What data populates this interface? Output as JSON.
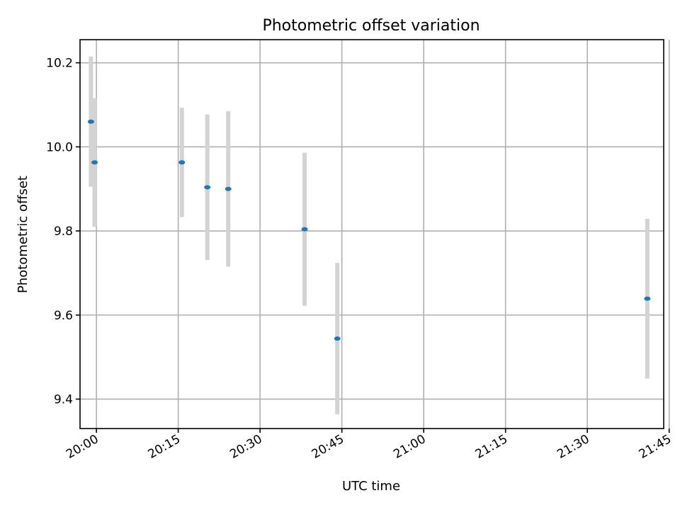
{
  "chart_data": {
    "type": "scatter",
    "title": "Photometric offset variation",
    "xlabel": "UTC time",
    "ylabel": "Photometric offset",
    "x_type": "time",
    "xlim": [
      "19:57",
      "21:44"
    ],
    "ylim": [
      9.33,
      10.255
    ],
    "grid": true,
    "x_ticks": [
      "20:00",
      "20:15",
      "20:30",
      "20:45",
      "21:00",
      "21:15",
      "21:30",
      "21:45"
    ],
    "y_ticks": [
      9.4,
      9.6,
      9.8,
      10.0,
      10.2
    ],
    "y_tick_labels": [
      "9.4",
      "9.6",
      "9.8",
      "10.0",
      "10.2"
    ],
    "point_color": "#1f77b4",
    "errorbar_color": "#d3d3d3",
    "points": [
      {
        "x": "19:59:00",
        "y": 10.06,
        "err": 0.155
      },
      {
        "x": "19:59:40",
        "y": 9.963,
        "err": 0.153
      },
      {
        "x": "20:15:40",
        "y": 9.963,
        "err": 0.13
      },
      {
        "x": "20:20:20",
        "y": 9.904,
        "err": 0.173
      },
      {
        "x": "20:24:10",
        "y": 9.9,
        "err": 0.185
      },
      {
        "x": "20:38:10",
        "y": 9.804,
        "err": 0.182
      },
      {
        "x": "20:44:10",
        "y": 9.544,
        "err": 0.18
      },
      {
        "x": "21:41:00",
        "y": 9.639,
        "err": 0.19
      }
    ]
  }
}
